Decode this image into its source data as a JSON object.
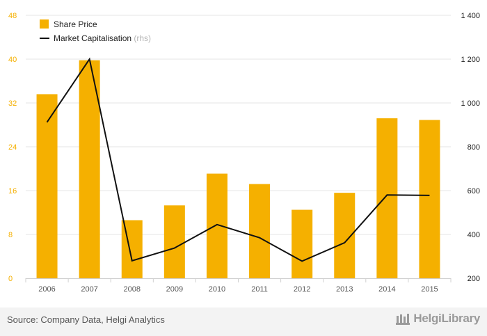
{
  "chart_data": {
    "type": "bar+line",
    "categories": [
      "2006",
      "2007",
      "2008",
      "2009",
      "2010",
      "2011",
      "2012",
      "2013",
      "2014",
      "2015"
    ],
    "series": [
      {
        "name": "Share Price",
        "type": "bar",
        "axis": "left",
        "color": "#f5b000",
        "values": [
          33.6,
          39.8,
          10.6,
          13.3,
          19.1,
          17.2,
          12.5,
          15.6,
          29.2,
          28.9
        ]
      },
      {
        "name": "Market Capitalisation",
        "name_suffix": "(rhs)",
        "type": "line",
        "axis": "right",
        "color": "#111111",
        "values": [
          912,
          1200,
          280,
          338,
          445,
          385,
          278,
          362,
          580,
          578
        ]
      }
    ],
    "y_left": {
      "min": 0,
      "max": 48,
      "ticks": [
        "0",
        "8",
        "16",
        "24",
        "32",
        "40",
        "48"
      ],
      "color": "#f5b000"
    },
    "y_right": {
      "min": 200,
      "max": 1400,
      "ticks": [
        "200",
        "400",
        "600",
        "800",
        "1 000",
        "1 200",
        "1 400"
      ],
      "color": "#222222"
    },
    "legend_position": "top-left",
    "grid": true
  },
  "footer": {
    "source": "Source: Company Data, Helgi Analytics",
    "brand": "HelgiLibrary"
  }
}
